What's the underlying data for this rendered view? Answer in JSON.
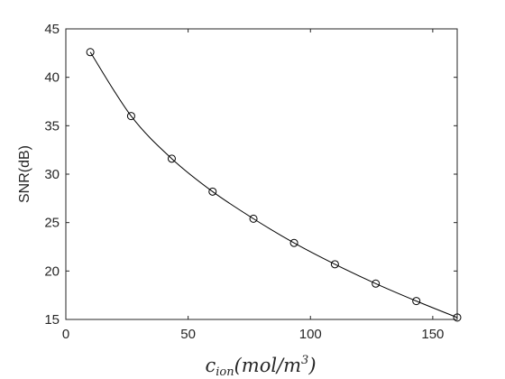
{
  "chart_data": {
    "type": "line",
    "title": "",
    "xlabel": {
      "symbol": "c",
      "subscript": "ion",
      "unit_open": "(",
      "unit_body": "mol/m",
      "unit_exp": "3",
      "unit_close": ")"
    },
    "ylabel": "SNR(dB)",
    "xlim": [
      0,
      160
    ],
    "ylim": [
      15,
      45
    ],
    "xticks": [
      0,
      50,
      100,
      150
    ],
    "yticks": [
      15,
      20,
      25,
      30,
      35,
      40,
      45
    ],
    "grid": false,
    "marker": "circle",
    "line_color": "#000000",
    "series": [
      {
        "x": [
          10,
          26.7,
          43.3,
          60,
          76.7,
          93.3,
          110,
          126.7,
          143.3,
          160
        ],
        "values": [
          42.6,
          36.0,
          31.6,
          28.2,
          25.4,
          22.9,
          20.7,
          18.7,
          16.9,
          15.2
        ]
      }
    ]
  }
}
